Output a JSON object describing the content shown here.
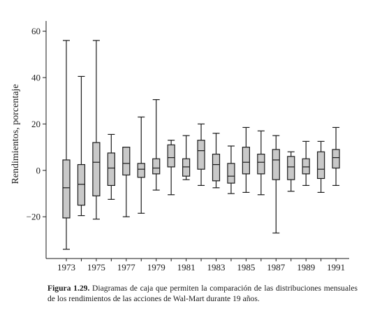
{
  "chart_data": {
    "type": "box",
    "title": "",
    "ylabel": "Rendimientos, porcentaje",
    "xlabel": "",
    "ylim": [
      -38,
      62
    ],
    "yticks": [
      -20,
      0,
      20,
      40,
      60
    ],
    "ytick_labels": [
      "−20",
      "0",
      "20",
      "40",
      "60"
    ],
    "categories": [
      "1973",
      "1974",
      "1975",
      "1976",
      "1977",
      "1978",
      "1979",
      "1980",
      "1981",
      "1982",
      "1983",
      "1984",
      "1985",
      "1986",
      "1987",
      "1988",
      "1989",
      "1990",
      "1991"
    ],
    "xtick_labels": [
      "1973",
      "",
      "1975",
      "",
      "1977",
      "",
      "1979",
      "",
      "1981",
      "",
      "1983",
      "",
      "1985",
      "",
      "1987",
      "",
      "1989",
      "",
      "1991"
    ],
    "boxes": [
      {
        "year": "1973",
        "min": -34,
        "q1": -20.5,
        "median": -7.5,
        "q3": 4.5,
        "max": 56
      },
      {
        "year": "1974",
        "min": -19.5,
        "q1": -15,
        "median": -6,
        "q3": 2.5,
        "max": 40.5
      },
      {
        "year": "1975",
        "min": -21,
        "q1": -11,
        "median": 3.5,
        "q3": 12,
        "max": 56
      },
      {
        "year": "1976",
        "min": -12.5,
        "q1": -6.5,
        "median": 1,
        "q3": 7.5,
        "max": 15.5
      },
      {
        "year": "1977",
        "min": -20,
        "q1": -2,
        "median": 3,
        "q3": 10,
        "max": 10
      },
      {
        "year": "1978",
        "min": -18.5,
        "q1": -3,
        "median": 0.5,
        "q3": 3,
        "max": 23
      },
      {
        "year": "1979",
        "min": -8.5,
        "q1": -1.5,
        "median": 1,
        "q3": 5,
        "max": 30.5
      },
      {
        "year": "1980",
        "min": -10.5,
        "q1": 1.5,
        "median": 5.5,
        "q3": 11,
        "max": 13
      },
      {
        "year": "1981",
        "min": -4,
        "q1": -2.5,
        "median": 1.5,
        "q3": 5,
        "max": 15
      },
      {
        "year": "1982",
        "min": -6.5,
        "q1": 0.5,
        "median": 8.5,
        "q3": 13,
        "max": 20
      },
      {
        "year": "1983",
        "min": -7.5,
        "q1": -4.5,
        "median": 2.5,
        "q3": 7,
        "max": 16
      },
      {
        "year": "1984",
        "min": -10,
        "q1": -5.5,
        "median": -2.5,
        "q3": 3,
        "max": 10.5
      },
      {
        "year": "1985",
        "min": -9.5,
        "q1": -1.5,
        "median": 3.5,
        "q3": 10,
        "max": 18.5
      },
      {
        "year": "1986",
        "min": -10.5,
        "q1": -1.5,
        "median": 3.5,
        "q3": 7,
        "max": 17
      },
      {
        "year": "1987",
        "min": -27,
        "q1": -4,
        "median": 4.5,
        "q3": 9,
        "max": 15
      },
      {
        "year": "1988",
        "min": -9,
        "q1": -4,
        "median": 1.5,
        "q3": 6,
        "max": 8
      },
      {
        "year": "1989",
        "min": -6.5,
        "q1": -1.5,
        "median": 1.5,
        "q3": 5,
        "max": 12.5
      },
      {
        "year": "1990",
        "min": -9.5,
        "q1": -3.5,
        "median": 0.5,
        "q3": 8,
        "max": 12.5
      },
      {
        "year": "1991",
        "min": -6.5,
        "q1": 1,
        "median": 5.5,
        "q3": 9,
        "max": 18.5
      }
    ],
    "grid": false,
    "box_fill": "#c9c9c9",
    "line_color": "#1a1a1a"
  },
  "caption": {
    "label": "Figura 1.29.",
    "text": "Diagramas de caja que permiten la comparación de las distribuciones mensuales de los rendimientos de las acciones de Wal-Mart durante 19 años."
  }
}
